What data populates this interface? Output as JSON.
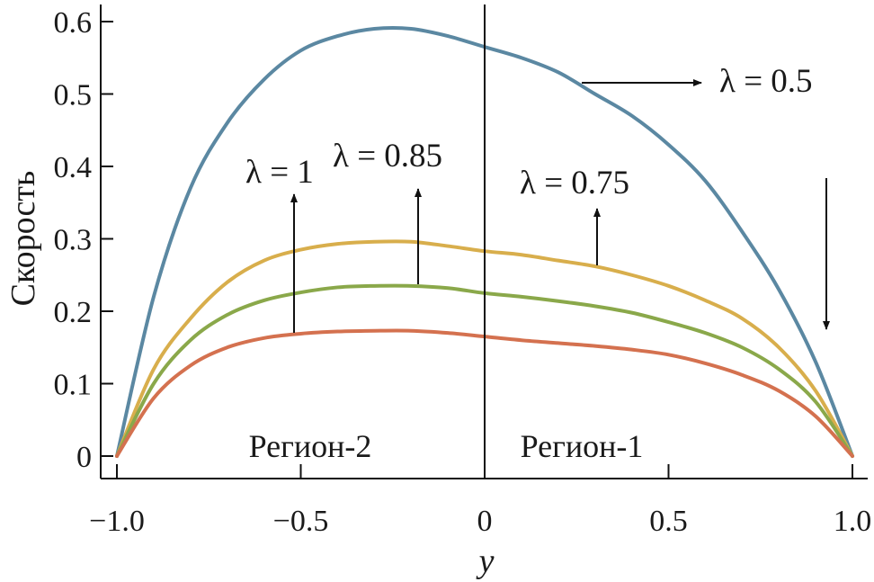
{
  "chart_data": {
    "type": "line",
    "title": "",
    "xlabel": "y",
    "ylabel": "Скорость",
    "xlim": [
      -1.0,
      1.0
    ],
    "ylim": [
      0,
      0.6
    ],
    "grid": false,
    "x_ticks": [
      "-1.0",
      "-0.5",
      "0",
      "0.5",
      "1.0"
    ],
    "x_tick_values": [
      -1.0,
      -0.5,
      0,
      0.5,
      1.0
    ],
    "y_ticks": [
      "0",
      "0.1",
      "0.2",
      "0.3",
      "0.4",
      "0.5",
      "0.6"
    ],
    "y_tick_values": [
      0,
      0.1,
      0.2,
      0.3,
      0.4,
      0.5,
      0.6
    ],
    "x": [
      -1.0,
      -0.9,
      -0.8,
      -0.7,
      -0.6,
      -0.5,
      -0.4,
      -0.3,
      -0.2,
      -0.1,
      0,
      0.1,
      0.2,
      0.3,
      0.4,
      0.5,
      0.6,
      0.7,
      0.8,
      0.9,
      1.0
    ],
    "series": [
      {
        "name": "λ = 0.5",
        "color": "#5b88a2",
        "values": [
          0,
          0.22,
          0.37,
          0.46,
          0.52,
          0.56,
          0.58,
          0.59,
          0.59,
          0.58,
          0.565,
          0.55,
          0.53,
          0.5,
          0.47,
          0.43,
          0.38,
          0.31,
          0.23,
          0.13,
          0
        ]
      },
      {
        "name": "λ = 0.75",
        "color": "#d8ae4c",
        "values": [
          0,
          0.12,
          0.19,
          0.24,
          0.27,
          0.285,
          0.293,
          0.296,
          0.296,
          0.29,
          0.283,
          0.278,
          0.27,
          0.262,
          0.25,
          0.235,
          0.215,
          0.19,
          0.15,
          0.09,
          0
        ]
      },
      {
        "name": "λ = 0.85",
        "color": "#8aa84a",
        "values": [
          0,
          0.1,
          0.16,
          0.195,
          0.215,
          0.226,
          0.233,
          0.235,
          0.235,
          0.232,
          0.225,
          0.22,
          0.214,
          0.207,
          0.198,
          0.185,
          0.17,
          0.15,
          0.12,
          0.075,
          0
        ]
      },
      {
        "name": "λ = 1",
        "color": "#d4714f",
        "values": [
          0,
          0.08,
          0.125,
          0.15,
          0.163,
          0.169,
          0.172,
          0.173,
          0.173,
          0.17,
          0.165,
          0.16,
          0.156,
          0.152,
          0.147,
          0.14,
          0.128,
          0.112,
          0.09,
          0.055,
          0
        ]
      }
    ],
    "annotations": {
      "lambda_1": "λ = 1",
      "lambda_085": "λ = 0.85",
      "lambda_075": "λ = 0.75",
      "lambda_05": "λ = 0.5",
      "region_2": "Регион-2",
      "region_1": "Регион-1"
    }
  }
}
